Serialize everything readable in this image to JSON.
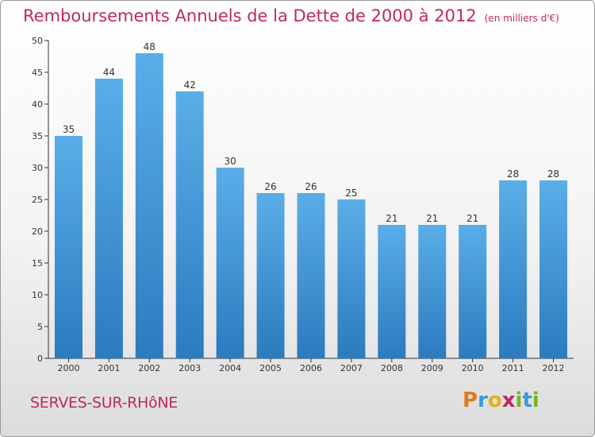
{
  "chart_data": {
    "type": "bar",
    "title": "Remboursements Annuels de la Dette de 2000 à 2012",
    "subtitle": "(en milliers d'€)",
    "categories": [
      "2000",
      "2001",
      "2002",
      "2003",
      "2004",
      "2005",
      "2006",
      "2007",
      "2008",
      "2009",
      "2010",
      "2011",
      "2012"
    ],
    "values": [
      35,
      44,
      48,
      42,
      30,
      26,
      26,
      25,
      21,
      21,
      21,
      28,
      28
    ],
    "ylim": [
      0,
      50
    ],
    "yticks": [
      0,
      5,
      10,
      15,
      20,
      25,
      30,
      35,
      40,
      45,
      50
    ],
    "grid": false,
    "bar_color_top": "#5aaee8",
    "bar_color_bottom": "#2b7bbf"
  },
  "footer": {
    "commune": "SERVES-SUR-RHôNE"
  },
  "logo": {
    "letters": [
      "P",
      "r",
      "o",
      "x",
      "i",
      "t",
      "i"
    ],
    "colors": [
      "#e07b1a",
      "#3a9ad9",
      "#e0b21a",
      "#c0295c",
      "#7ab61f",
      "#3a9ad9",
      "#7ab61f"
    ]
  },
  "colors": {
    "title": "#c0295c",
    "axis": "#333333"
  }
}
